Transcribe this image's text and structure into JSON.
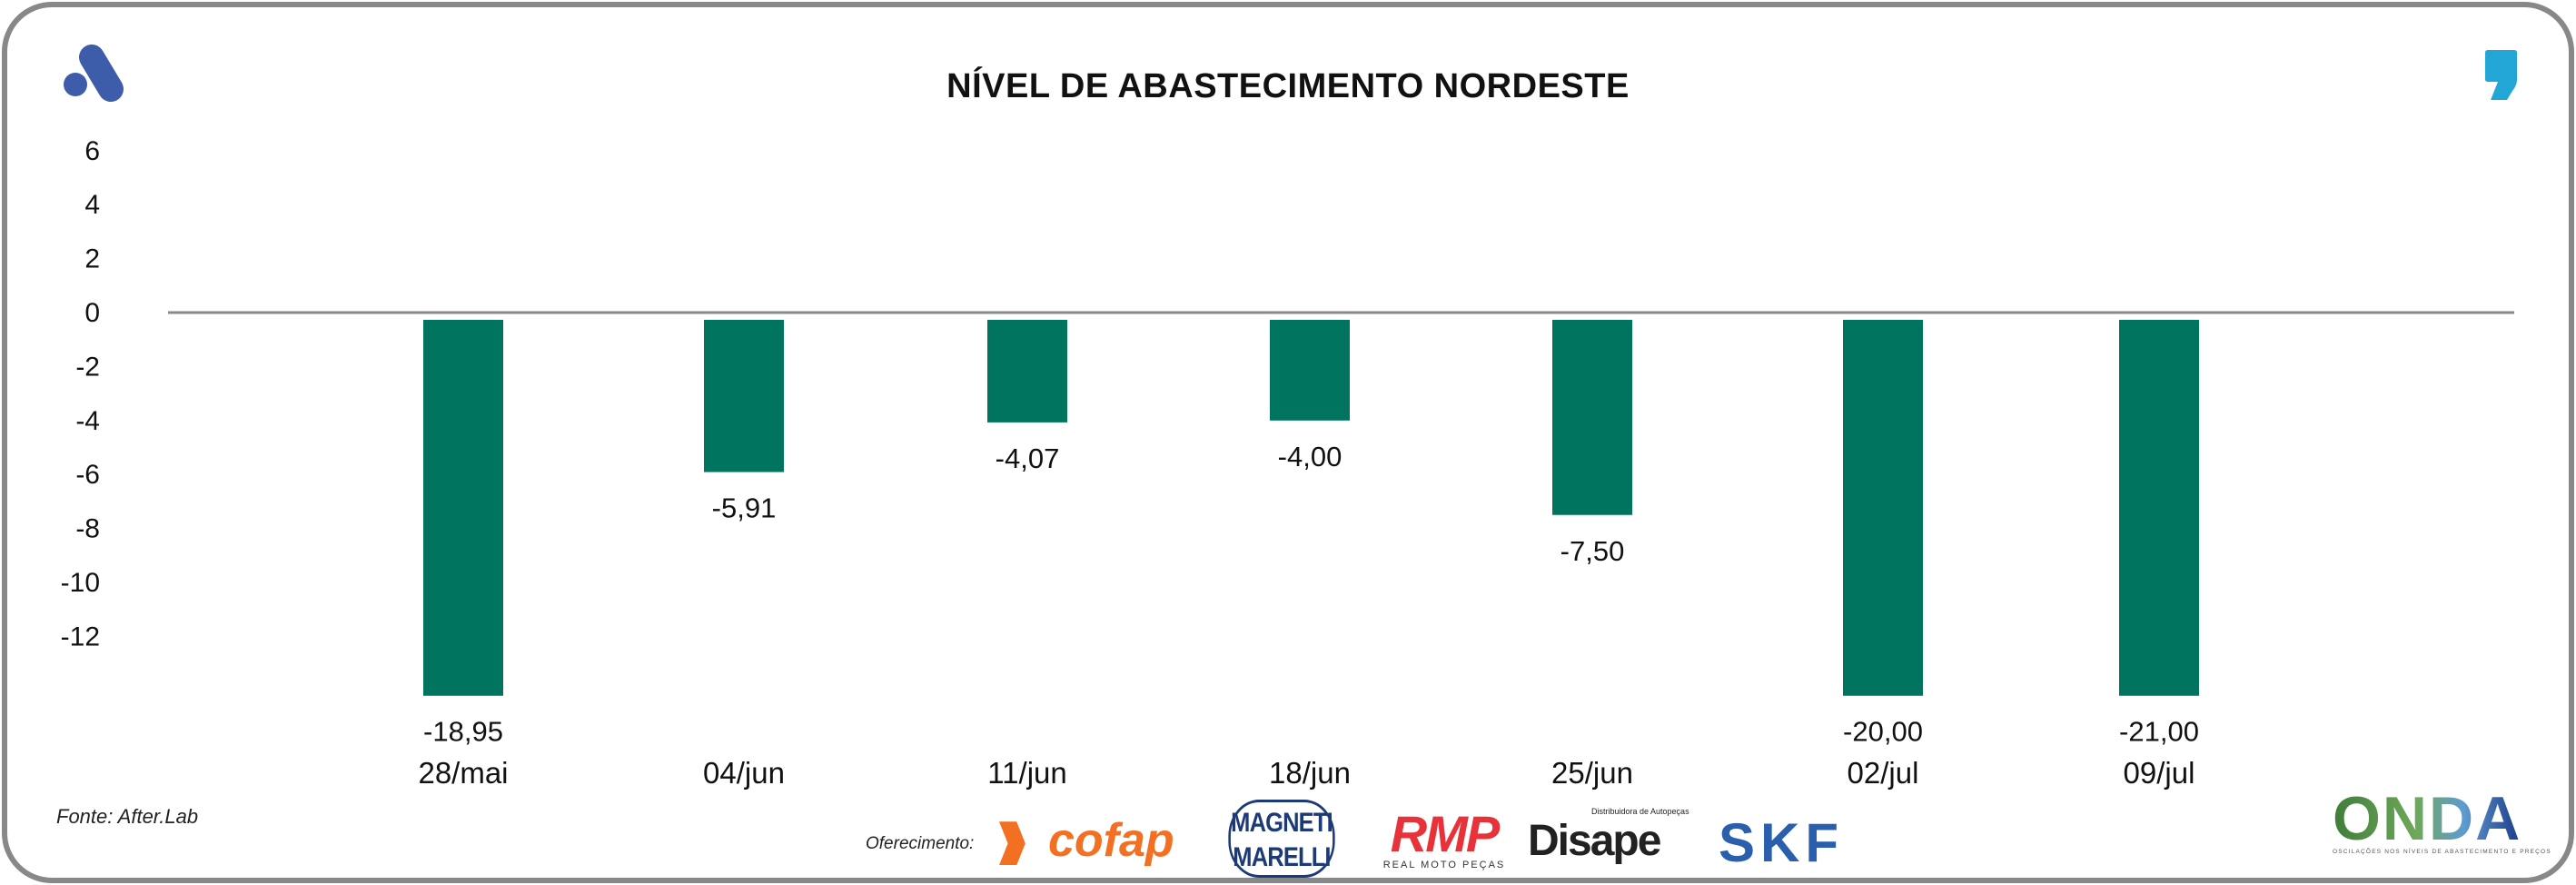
{
  "chart_data": {
    "type": "bar",
    "title": "NÍVEL DE ABASTECIMENTO NORDESTE",
    "categories": [
      "28/mai",
      "04/jun",
      "11/jun",
      "18/jun",
      "25/jun",
      "02/jul",
      "09/jul"
    ],
    "values": [
      -18.95,
      -5.91,
      -4.07,
      -4.0,
      -7.5,
      -20.0,
      -21.0
    ],
    "value_labels": [
      "-18,95",
      "-5,91",
      "-4,07",
      "-4,00",
      "-7,50",
      "-20,00",
      "-21,00"
    ],
    "yticks": [
      6,
      4,
      2,
      0,
      -2,
      -4,
      -6,
      -8,
      -10,
      -12
    ],
    "ylim": [
      -14.2,
      6.5
    ],
    "xlabel": "",
    "ylabel": "",
    "grid": false,
    "bar_color": "#00745e"
  },
  "footer": {
    "source": "Fonte: After.Lab",
    "sponsor_label": "Oferecimento:",
    "sponsors": [
      "cofap",
      "MAGNETI MARELLI",
      "RMP",
      "Disape",
      "SKF"
    ],
    "rmp_tagline": "REAL MOTO PEÇAS",
    "disape_tagline": "Distribuidora de Autopeças",
    "onda": "ONDA",
    "onda_tagline": "OSCILAÇÕES NOS NÍVEIS DE ABASTECIMENTO E PREÇOS"
  },
  "colors": {
    "brand_blue": "#3d5dab",
    "comma_blue": "#22a6d6",
    "frame": "#87888a"
  }
}
